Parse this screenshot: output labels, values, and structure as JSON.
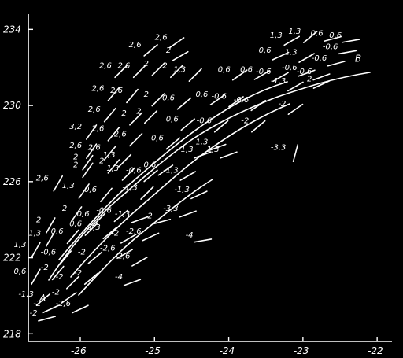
{
  "chart_data": {
    "type": "scatter",
    "x_ticks": [
      "-26",
      "-25",
      "-24",
      "-23",
      "-22"
    ],
    "y_ticks": [
      "218",
      "222",
      "226",
      "230",
      "234"
    ],
    "xlim": [
      -26.7,
      -21.8
    ],
    "ylim": [
      217.6,
      234.8
    ],
    "endpoint_labels": [
      {
        "text": "A",
        "x": -26.55,
        "y": 219.7
      },
      {
        "text": "B",
        "x": -22.3,
        "y": 232.3
      }
    ],
    "points": [
      {
        "x": -25.05,
        "y": 232.9,
        "value": "2,6",
        "angle": 40
      },
      {
        "x": -24.7,
        "y": 233.3,
        "value": "2,6",
        "angle": 35
      },
      {
        "x": -24.65,
        "y": 232.6,
        "value": "2",
        "angle": 30
      },
      {
        "x": -23.15,
        "y": 233.4,
        "value": "1,3",
        "angle": 30
      },
      {
        "x": -22.9,
        "y": 233.6,
        "value": "1,3",
        "angle": 40
      },
      {
        "x": -22.6,
        "y": 233.5,
        "value": "0,6",
        "angle": 15
      },
      {
        "x": -22.35,
        "y": 233.4,
        "value": "0,6",
        "angle": 10
      },
      {
        "x": -22.4,
        "y": 232.8,
        "value": "-0,6",
        "angle": 10
      },
      {
        "x": -23.3,
        "y": 232.6,
        "value": "0,6",
        "angle": 25
      },
      {
        "x": -22.95,
        "y": 232.5,
        "value": "1,3",
        "angle": 30
      },
      {
        "x": -22.55,
        "y": 232.2,
        "value": "-0,6",
        "angle": 15
      },
      {
        "x": -25.45,
        "y": 231.8,
        "value": "2,6",
        "angle": 45
      },
      {
        "x": -25.2,
        "y": 231.8,
        "value": "2,6",
        "angle": 45
      },
      {
        "x": -24.95,
        "y": 231.9,
        "value": "2",
        "angle": 45
      },
      {
        "x": -24.7,
        "y": 231.8,
        "value": "2",
        "angle": 45
      },
      {
        "x": -24.45,
        "y": 231.6,
        "value": "1,3",
        "angle": 45
      },
      {
        "x": -23.85,
        "y": 231.6,
        "value": "0,6",
        "angle": 35
      },
      {
        "x": -23.55,
        "y": 231.6,
        "value": "0,6",
        "angle": 30
      },
      {
        "x": -23.3,
        "y": 231.5,
        "value": "-0,6",
        "angle": 30
      },
      {
        "x": -22.95,
        "y": 231.7,
        "value": "-0,6",
        "angle": 20
      },
      {
        "x": -22.75,
        "y": 231.5,
        "value": "-0,6",
        "angle": 20
      },
      {
        "x": -23.1,
        "y": 231.0,
        "value": "-1,3",
        "angle": 30
      },
      {
        "x": -22.75,
        "y": 231.1,
        "value": "-2",
        "angle": 25
      },
      {
        "x": -25.55,
        "y": 230.6,
        "value": "2,6",
        "angle": 50
      },
      {
        "x": -25.3,
        "y": 230.5,
        "value": "2,6",
        "angle": 50
      },
      {
        "x": -24.95,
        "y": 230.3,
        "value": "2",
        "angle": 45
      },
      {
        "x": -24.6,
        "y": 230.1,
        "value": "0,6",
        "angle": 40
      },
      {
        "x": -24.15,
        "y": 230.3,
        "value": "0,6",
        "angle": 35
      },
      {
        "x": -23.9,
        "y": 230.2,
        "value": "-0,6",
        "angle": 35
      },
      {
        "x": -23.6,
        "y": 230.0,
        "value": "-0,6",
        "angle": 35
      },
      {
        "x": -23.1,
        "y": 229.8,
        "value": "-2",
        "angle": 35
      },
      {
        "x": -25.6,
        "y": 229.5,
        "value": "2,6",
        "angle": 50
      },
      {
        "x": -25.25,
        "y": 229.3,
        "value": "2",
        "angle": 45
      },
      {
        "x": -25.05,
        "y": 229.4,
        "value": "2",
        "angle": 45
      },
      {
        "x": -24.55,
        "y": 229.0,
        "value": "0,6",
        "angle": 40
      },
      {
        "x": -24.1,
        "y": 228.9,
        "value": "-0,6",
        "angle": 40
      },
      {
        "x": -23.6,
        "y": 228.9,
        "value": "-2",
        "angle": 40
      },
      {
        "x": -25.85,
        "y": 228.6,
        "value": "3,2",
        "angle": 55
      },
      {
        "x": -25.55,
        "y": 228.5,
        "value": "2,6",
        "angle": 50
      },
      {
        "x": -25.25,
        "y": 228.2,
        "value": "2,6",
        "angle": 45
      },
      {
        "x": -24.75,
        "y": 228.0,
        "value": "0,6",
        "angle": 40
      },
      {
        "x": -24.15,
        "y": 227.8,
        "value": "-1,3",
        "angle": 20
      },
      {
        "x": -24.35,
        "y": 227.4,
        "value": "-1,3",
        "angle": 20
      },
      {
        "x": -24.0,
        "y": 227.4,
        "value": "1,3",
        "angle": 20
      },
      {
        "x": -23.1,
        "y": 227.5,
        "value": "-3,3",
        "angle": 75
      },
      {
        "x": -25.85,
        "y": 227.6,
        "value": "2,6",
        "angle": 55
      },
      {
        "x": -25.6,
        "y": 227.5,
        "value": "2,6",
        "angle": 50
      },
      {
        "x": -25.4,
        "y": 227.1,
        "value": "1,3",
        "angle": 45
      },
      {
        "x": -25.9,
        "y": 227.0,
        "value": "2",
        "angle": 55
      },
      {
        "x": -25.55,
        "y": 226.8,
        "value": "2",
        "angle": 50
      },
      {
        "x": -25.9,
        "y": 226.6,
        "value": "2",
        "angle": 55
      },
      {
        "x": -25.35,
        "y": 226.4,
        "value": "1,3",
        "angle": 45
      },
      {
        "x": -25.05,
        "y": 226.3,
        "value": "-0,6",
        "angle": 40
      },
      {
        "x": -24.85,
        "y": 226.6,
        "value": "0,6",
        "angle": 35
      },
      {
        "x": -24.55,
        "y": 226.3,
        "value": "-1,3",
        "angle": 30
      },
      {
        "x": -25.95,
        "y": 225.5,
        "value": "1,3",
        "angle": 55
      },
      {
        "x": -25.65,
        "y": 225.3,
        "value": "0,6",
        "angle": 50
      },
      {
        "x": -25.1,
        "y": 225.4,
        "value": "-1,3",
        "angle": 45
      },
      {
        "x": -24.4,
        "y": 225.3,
        "value": "-1,3",
        "angle": 25
      },
      {
        "x": -26.3,
        "y": 225.9,
        "value": "2,6",
        "angle": 60
      },
      {
        "x": -26.4,
        "y": 223.7,
        "value": "2",
        "angle": 60
      },
      {
        "x": -26.05,
        "y": 224.3,
        "value": "2",
        "angle": 55
      },
      {
        "x": -25.75,
        "y": 224.0,
        "value": "0,6",
        "angle": 45
      },
      {
        "x": -25.45,
        "y": 224.2,
        "value": "-0,6",
        "angle": 40
      },
      {
        "x": -25.2,
        "y": 224.0,
        "value": "-1,3",
        "angle": 20
      },
      {
        "x": -24.9,
        "y": 223.9,
        "value": "-2",
        "angle": 15
      },
      {
        "x": -24.55,
        "y": 224.3,
        "value": "-3,3",
        "angle": 20
      },
      {
        "x": -26.4,
        "y": 223.0,
        "value": "1,3",
        "angle": 60
      },
      {
        "x": -26.1,
        "y": 223.1,
        "value": "0,6",
        "angle": 50
      },
      {
        "x": -25.85,
        "y": 223.5,
        "value": "0,6",
        "angle": 45
      },
      {
        "x": -25.6,
        "y": 223.3,
        "value": "-1,3",
        "angle": 40
      },
      {
        "x": -25.35,
        "y": 223.0,
        "value": "-2",
        "angle": 30
      },
      {
        "x": -25.05,
        "y": 223.1,
        "value": "-2,6",
        "angle": 25
      },
      {
        "x": -24.35,
        "y": 222.9,
        "value": "-4",
        "angle": 10
      },
      {
        "x": -26.6,
        "y": 222.4,
        "value": "1,3",
        "angle": 60
      },
      {
        "x": -26.2,
        "y": 222.0,
        "value": "-0,6",
        "angle": 50
      },
      {
        "x": -25.8,
        "y": 222.0,
        "value": "-2",
        "angle": 40
      },
      {
        "x": -25.4,
        "y": 222.2,
        "value": "-2,6",
        "angle": 30
      },
      {
        "x": -25.2,
        "y": 221.8,
        "value": "-2,6",
        "angle": 30
      },
      {
        "x": -26.6,
        "y": 221.0,
        "value": "0,6",
        "angle": 60
      },
      {
        "x": -26.3,
        "y": 221.2,
        "value": "-2",
        "angle": 50
      },
      {
        "x": -26.1,
        "y": 220.7,
        "value": "-2",
        "angle": 45
      },
      {
        "x": -25.85,
        "y": 220.9,
        "value": "-2",
        "angle": 40
      },
      {
        "x": -25.3,
        "y": 220.7,
        "value": "-4",
        "angle": 20
      },
      {
        "x": -26.5,
        "y": 219.8,
        "value": "-1,3",
        "angle": 40
      },
      {
        "x": -26.15,
        "y": 219.9,
        "value": "-2",
        "angle": 35
      },
      {
        "x": -26.4,
        "y": 219.3,
        "value": "-2",
        "angle": 25
      },
      {
        "x": -26.0,
        "y": 219.3,
        "value": "-2,6",
        "angle": 25
      },
      {
        "x": -26.45,
        "y": 218.8,
        "value": "-2",
        "angle": 15
      }
    ]
  }
}
